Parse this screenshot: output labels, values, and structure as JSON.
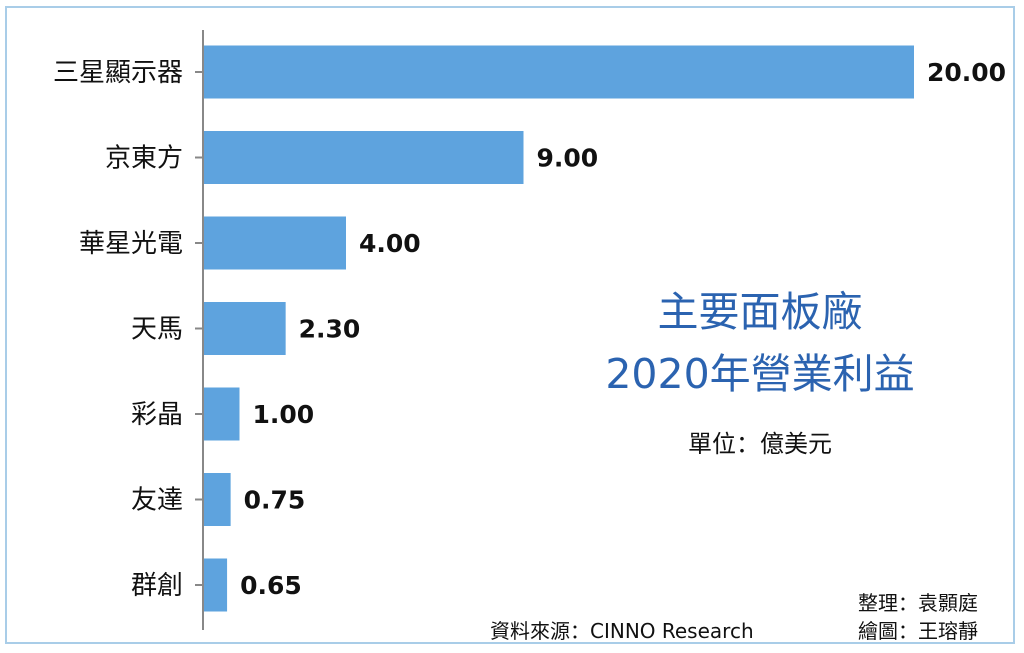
{
  "chart_data": {
    "type": "bar",
    "orientation": "horizontal",
    "title_line1": "主要面板廠",
    "title_line2": "2020年營業利益",
    "unit_label": "單位：億美元",
    "categories": [
      "三星顯示器",
      "京東方",
      "華星光電",
      "天馬",
      "彩晶",
      "友達",
      "群創"
    ],
    "values": [
      20.0,
      9.0,
      4.0,
      2.3,
      1.0,
      0.75,
      0.65
    ],
    "value_labels": [
      "20.00",
      "9.00",
      "4.00",
      "2.30",
      "1.00",
      "0.75",
      "0.65"
    ],
    "xlim": [
      0,
      20
    ],
    "grid": false,
    "bar_color": "#5ea3de",
    "title_color": "#2b63b0"
  },
  "credits": {
    "source": "資料來源：CINNO Research",
    "editor": "整理：袁顥庭",
    "illustrator": "繪圖：王瑢靜"
  }
}
